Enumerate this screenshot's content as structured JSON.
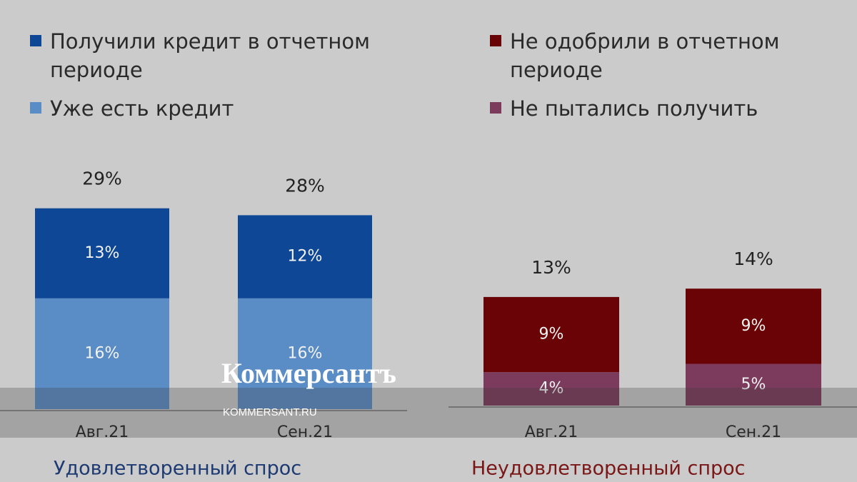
{
  "chart_data": [
    {
      "type": "stacked-bar",
      "title": "Удовлетворенный спрос",
      "categories": [
        "Авг.21",
        "Сен.21"
      ],
      "series": [
        {
          "name": "Получили кредит в отчетном периоде",
          "color": "#0e4796",
          "values": [
            13,
            12
          ],
          "value_labels": [
            "13%",
            "12%"
          ]
        },
        {
          "name": "Уже есть кредит",
          "color": "#5a8cc6",
          "values": [
            16,
            16
          ],
          "value_labels": [
            "16%",
            "16%"
          ]
        }
      ],
      "totals": [
        29,
        28
      ],
      "total_labels": [
        "29%",
        "28%"
      ]
    },
    {
      "type": "stacked-bar",
      "title": "Неудовлетворенный спрос",
      "categories": [
        "Авг.21",
        "Сен.21"
      ],
      "series": [
        {
          "name": "Не одобрили в отчетном периоде",
          "color": "#6a0306",
          "values": [
            9,
            9
          ],
          "value_labels": [
            "9%",
            "9%"
          ]
        },
        {
          "name": "Не пытались получить",
          "color": "#7c3a5c",
          "values": [
            4,
            5
          ],
          "value_labels": [
            "4%",
            "5%"
          ]
        }
      ],
      "totals": [
        13,
        14
      ],
      "total_labels": [
        "13%",
        "14%"
      ]
    }
  ],
  "watermark": {
    "logo": "Коммерсантъ",
    "url": "KOMMERSANT.RU"
  }
}
